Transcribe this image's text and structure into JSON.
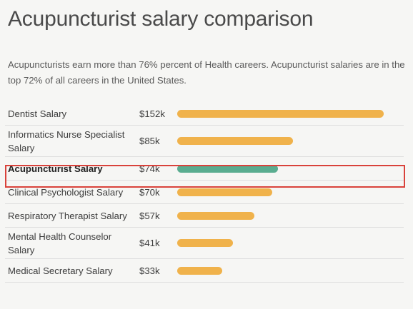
{
  "header": {
    "title": "Acupuncturist salary comparison",
    "description": "Acupuncturists earn more than 76% percent of Health careers. Acupuncturist salaries are in the top 72% of all careers in the United States."
  },
  "colors": {
    "bar_default": "#f0b24b",
    "bar_highlight": "#5aad90",
    "highlight_border": "#d9423b"
  },
  "chart_data": {
    "type": "bar",
    "orientation": "horizontal",
    "title": "Acupuncturist salary comparison",
    "categories": [
      "Dentist Salary",
      "Informatics Nurse Specialist Salary",
      "Acupuncturist Salary",
      "Clinical Psychologist Salary",
      "Respiratory Therapist Salary",
      "Mental Health Counselor Salary",
      "Medical Secretary Salary"
    ],
    "value_labels": [
      "$152k",
      "$85k",
      "$74k",
      "$70k",
      "$57k",
      "$41k",
      "$33k"
    ],
    "values": [
      152,
      85,
      74,
      70,
      57,
      41,
      33
    ],
    "unit": "thousand USD",
    "highlighted_category": "Acupuncturist Salary",
    "grid": false,
    "legend": "none"
  }
}
